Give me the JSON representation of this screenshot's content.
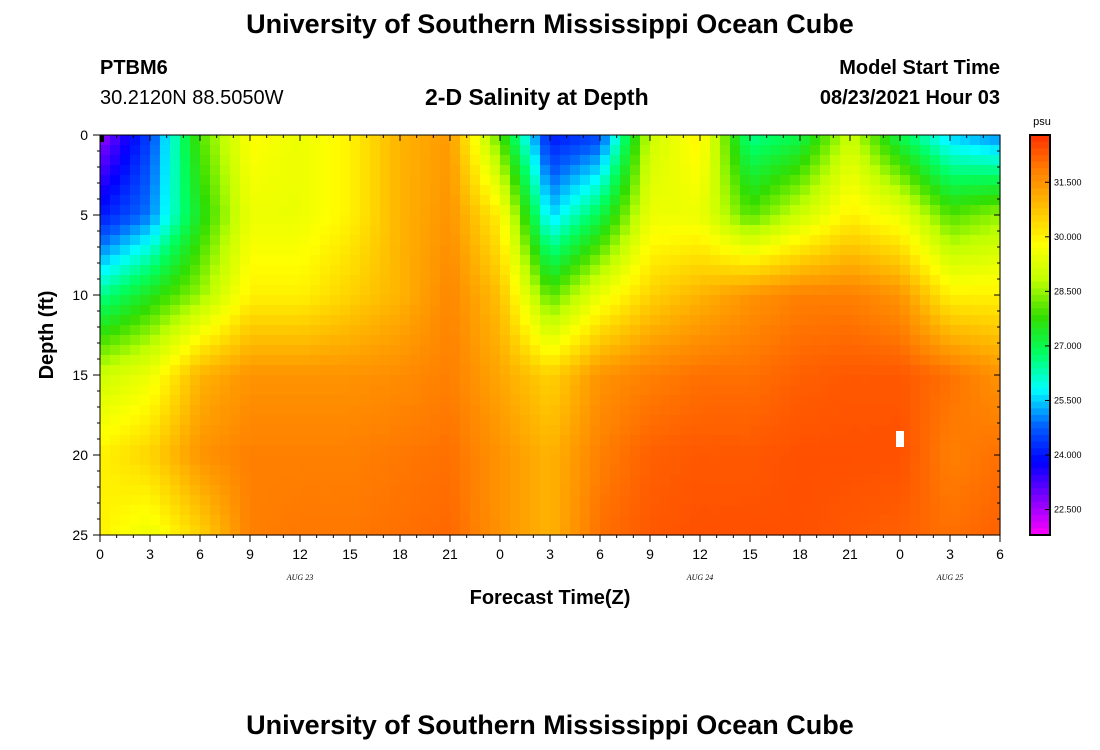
{
  "header": {
    "title_top": "University of Southern Mississippi Ocean Cube",
    "title_bottom": "University of Southern Mississippi Ocean Cube",
    "station_id": "PTBM6",
    "station_coords": "30.2120N  88.5050W",
    "plot_title": "2-D Salinity at Depth",
    "model_start_label": "Model Start Time",
    "model_start_value": "08/23/2021 Hour 03"
  },
  "chart_data": {
    "type": "heatmap",
    "title": "2-D Salinity at Depth",
    "xlabel": "Forecast Time(Z)",
    "ylabel": "Depth (ft)",
    "x_range_hours": [
      0,
      54
    ],
    "ylim": [
      0,
      25
    ],
    "y_ticks": [
      "0",
      "5",
      "10",
      "15",
      "20",
      "25"
    ],
    "x_tick_labels": [
      "0",
      "3",
      "6",
      "9",
      "12",
      "15",
      "18",
      "21",
      "0",
      "3",
      "6",
      "9",
      "12",
      "15",
      "18",
      "21",
      "0",
      "3",
      "6"
    ],
    "date_labels": [
      {
        "text": "AUG  23",
        "hour": 12
      },
      {
        "text": "AUG  24",
        "hour": 36
      },
      {
        "text": "AUG  25",
        "hour": 51
      }
    ],
    "colorbar": {
      "unit": "psu",
      "min": 21.8,
      "max": 32.8,
      "tick_labels": [
        "22.500",
        "24.000",
        "25.500",
        "27.000",
        "28.500",
        "30.000",
        "31.500"
      ],
      "tick_values": [
        22.5,
        24.0,
        25.5,
        27.0,
        28.5,
        30.0,
        31.5
      ],
      "colors": [
        "#ff00ff",
        "#8000ff",
        "#0000ff",
        "#0060ff",
        "#00ffff",
        "#00ff60",
        "#33dd00",
        "#c0ff00",
        "#ffff00",
        "#ffc000",
        "#ff8000",
        "#ff3000"
      ]
    },
    "depth_levels_ft": [
      0,
      5,
      10,
      15,
      20,
      25
    ],
    "time_knots_hours": [
      0,
      3,
      6,
      9,
      12,
      15,
      18,
      21,
      24,
      27,
      30,
      33,
      36,
      39,
      42,
      45,
      48,
      51,
      54
    ],
    "salinity_grid": [
      [
        22.6,
        24.5,
        28.0,
        29.8,
        29.5,
        30.0,
        31.0,
        31.4,
        28.0,
        24.0,
        24.5,
        29.0,
        30.0,
        26.5,
        27.0,
        29.0,
        27.0,
        25.5,
        25.0
      ],
      [
        24.0,
        25.0,
        27.5,
        29.5,
        29.5,
        30.0,
        31.0,
        31.5,
        30.0,
        25.5,
        27.0,
        29.5,
        29.5,
        28.0,
        29.0,
        30.0,
        29.5,
        28.0,
        28.5
      ],
      [
        26.5,
        27.5,
        28.5,
        30.0,
        30.0,
        30.5,
        31.0,
        31.7,
        30.8,
        28.0,
        29.5,
        30.5,
        31.0,
        31.5,
        31.8,
        31.8,
        31.5,
        30.0,
        30.0
      ],
      [
        29.0,
        29.5,
        31.0,
        31.5,
        31.5,
        31.5,
        31.6,
        31.8,
        31.2,
        30.5,
        31.5,
        31.8,
        32.0,
        32.0,
        32.2,
        32.3,
        32.3,
        32.0,
        31.5
      ],
      [
        30.0,
        30.5,
        31.5,
        31.8,
        31.8,
        31.8,
        31.9,
        32.0,
        31.5,
        31.0,
        31.8,
        32.2,
        32.3,
        32.3,
        32.4,
        32.4,
        32.4,
        31.8,
        32.0
      ],
      [
        30.0,
        29.5,
        30.5,
        31.8,
        31.9,
        31.9,
        32.0,
        32.1,
        31.5,
        31.0,
        32.0,
        32.3,
        32.4,
        32.4,
        32.4,
        32.3,
        32.2,
        32.0,
        32.2
      ]
    ]
  }
}
